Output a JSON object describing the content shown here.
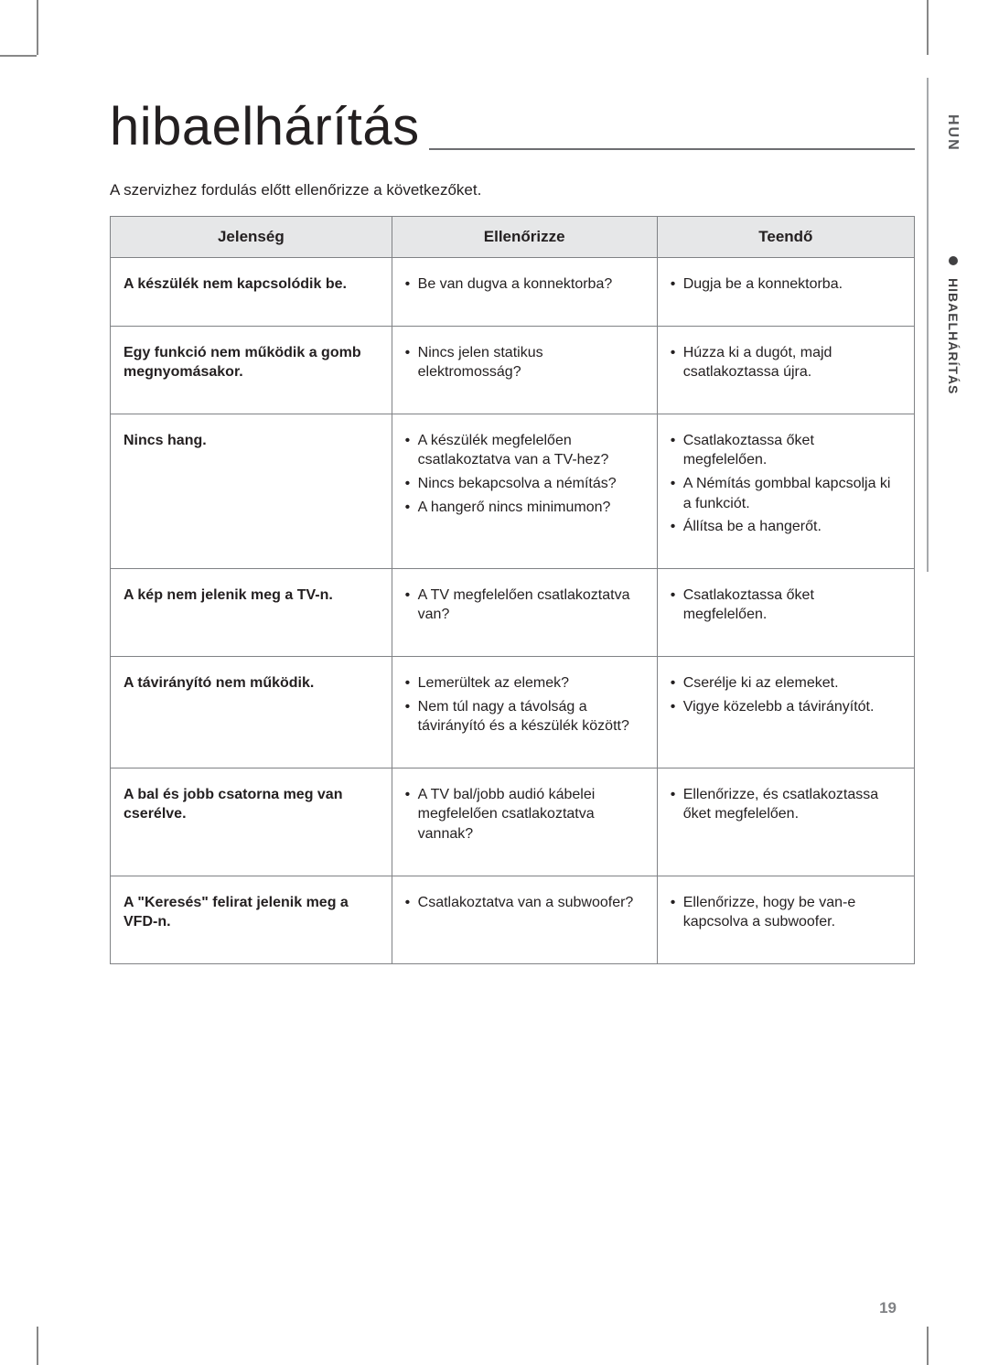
{
  "lang_code": "HUN",
  "side_tab_label": "HIBAELHÁRÍTÁS",
  "title": "hibaelhárítás",
  "intro": "A szervizhez fordulás előtt ellenőrizze a következőket.",
  "page_number": "19",
  "columns": {
    "symptom": "Jelenség",
    "check": "Ellenőrizze",
    "action": "Teendő"
  },
  "rows": [
    {
      "symptom": "A készülék nem kapcsolódik be.",
      "checks": [
        "Be van dugva a konnektorba?"
      ],
      "actions": [
        "Dugja be a konnektorba."
      ]
    },
    {
      "symptom": "Egy funkció nem működik a gomb megnyomásakor.",
      "checks": [
        "Nincs jelen statikus elektromosság?"
      ],
      "actions": [
        "Húzza ki a dugót, majd csatlakoztassa újra."
      ]
    },
    {
      "symptom": "Nincs hang.",
      "checks": [
        "A készülék megfelelően csatlakoztatva van a TV-hez?",
        "Nincs bekapcsolva a némítás?",
        "A hangerő nincs minimumon?"
      ],
      "actions": [
        "Csatlakoztassa őket megfelelően.",
        "A Némítás gombbal kapcsolja ki a funkciót.",
        "Állítsa be a hangerőt."
      ]
    },
    {
      "symptom": "A kép nem jelenik meg a TV-n.",
      "checks": [
        "A TV megfelelően csatlakoztatva van?"
      ],
      "actions": [
        "Csatlakoztassa őket megfelelően."
      ]
    },
    {
      "symptom": "A távirányító nem működik.",
      "checks": [
        "Lemerültek az elemek?",
        "Nem túl nagy a távolság a távirányító és a készülék között?"
      ],
      "actions": [
        "Cserélje ki az elemeket.",
        "Vigye közelebb a távirányítót."
      ]
    },
    {
      "symptom": "A bal és jobb csatorna meg van cserélve.",
      "checks": [
        "A TV bal/jobb audió kábelei megfelelően csatlakoztatva vannak?"
      ],
      "actions": [
        "Ellenőrizze, és csatlakoztassa őket megfelelően."
      ]
    },
    {
      "symptom": "A \"Keresés\" felirat jelenik meg a VFD-n.",
      "checks": [
        "Csatlakoztatva van a subwoofer?"
      ],
      "actions": [
        "Ellenőrizze, hogy be van-e kapcsolva a subwoofer."
      ]
    }
  ],
  "colors": {
    "header_bg": "#e6e7e8",
    "border": "#808285",
    "text": "#231f20",
    "side_text": "#58595b",
    "page_num": "#808285"
  },
  "typography": {
    "title_fontsize": 58,
    "body_fontsize": 16,
    "header_fontsize": 17
  }
}
